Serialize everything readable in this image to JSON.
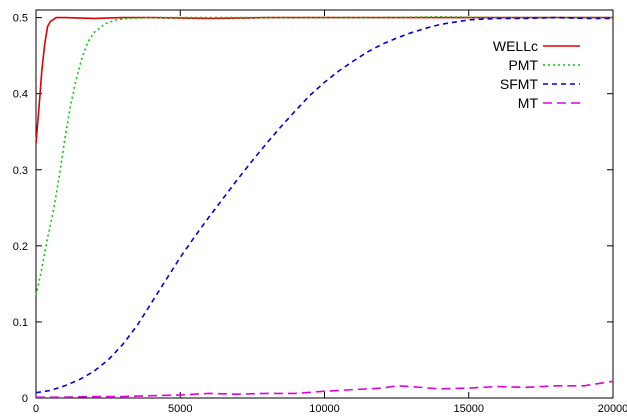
{
  "chart_data": {
    "type": "line",
    "xlim": [
      0,
      20000
    ],
    "ylim": [
      0,
      0.51
    ],
    "x_ticks": [
      0,
      5000,
      10000,
      15000,
      20000
    ],
    "x_tick_labels": [
      "0",
      "5000",
      "10000",
      "15000",
      "20000"
    ],
    "y_ticks": [
      0,
      0.1,
      0.2,
      0.3,
      0.4,
      0.5
    ],
    "y_tick_labels": [
      "0",
      "0.1",
      "0.2",
      "0.3",
      "0.4",
      "0.5"
    ],
    "grid": false,
    "legend_position": "top-right",
    "series": [
      {
        "name": "WELLc",
        "color": "#e00000",
        "dash": "solid",
        "points": [
          [
            0,
            0.335
          ],
          [
            100,
            0.38
          ],
          [
            200,
            0.43
          ],
          [
            300,
            0.465
          ],
          [
            400,
            0.488
          ],
          [
            500,
            0.495
          ],
          [
            700,
            0.5
          ],
          [
            1000,
            0.5
          ],
          [
            2000,
            0.499
          ],
          [
            3000,
            0.5
          ],
          [
            4000,
            0.5
          ],
          [
            6000,
            0.499
          ],
          [
            8000,
            0.5
          ],
          [
            10000,
            0.5
          ],
          [
            12000,
            0.5
          ],
          [
            14000,
            0.5
          ],
          [
            16000,
            0.5
          ],
          [
            18000,
            0.5
          ],
          [
            20000,
            0.5
          ]
        ]
      },
      {
        "name": "PMT",
        "color": "#00cc00",
        "dash": "dotted",
        "points": [
          [
            0,
            0.135
          ],
          [
            200,
            0.17
          ],
          [
            400,
            0.21
          ],
          [
            600,
            0.245
          ],
          [
            800,
            0.29
          ],
          [
            1000,
            0.34
          ],
          [
            1200,
            0.385
          ],
          [
            1400,
            0.42
          ],
          [
            1600,
            0.448
          ],
          [
            1800,
            0.468
          ],
          [
            2000,
            0.48
          ],
          [
            2400,
            0.492
          ],
          [
            2800,
            0.497
          ],
          [
            3200,
            0.499
          ],
          [
            4000,
            0.5
          ],
          [
            6000,
            0.5
          ],
          [
            8000,
            0.5
          ],
          [
            10000,
            0.5
          ],
          [
            12000,
            0.5
          ],
          [
            14000,
            0.501
          ],
          [
            16000,
            0.5
          ],
          [
            18000,
            0.5
          ],
          [
            20000,
            0.5
          ]
        ]
      },
      {
        "name": "SFMT",
        "color": "#0000dd",
        "dash": "dashed",
        "points": [
          [
            0,
            0.007
          ],
          [
            500,
            0.01
          ],
          [
            1000,
            0.016
          ],
          [
            1500,
            0.024
          ],
          [
            2000,
            0.035
          ],
          [
            2500,
            0.05
          ],
          [
            3000,
            0.07
          ],
          [
            3500,
            0.095
          ],
          [
            4000,
            0.125
          ],
          [
            4500,
            0.155
          ],
          [
            5000,
            0.185
          ],
          [
            5500,
            0.212
          ],
          [
            6000,
            0.238
          ],
          [
            6500,
            0.263
          ],
          [
            7000,
            0.288
          ],
          [
            7500,
            0.312
          ],
          [
            8000,
            0.335
          ],
          [
            8500,
            0.357
          ],
          [
            9000,
            0.378
          ],
          [
            9500,
            0.398
          ],
          [
            10000,
            0.415
          ],
          [
            10500,
            0.43
          ],
          [
            11000,
            0.443
          ],
          [
            11500,
            0.455
          ],
          [
            12000,
            0.465
          ],
          [
            12500,
            0.473
          ],
          [
            13000,
            0.48
          ],
          [
            13500,
            0.486
          ],
          [
            14000,
            0.491
          ],
          [
            14500,
            0.494
          ],
          [
            15000,
            0.497
          ],
          [
            16000,
            0.499
          ],
          [
            17000,
            0.499
          ],
          [
            18000,
            0.5
          ],
          [
            19000,
            0.499
          ],
          [
            20000,
            0.499
          ]
        ]
      },
      {
        "name": "MT",
        "color": "#e000e0",
        "dash": "longdash",
        "points": [
          [
            0,
            0.001
          ],
          [
            1000,
            0.001
          ],
          [
            2000,
            0.002
          ],
          [
            3000,
            0.002
          ],
          [
            4000,
            0.003
          ],
          [
            5000,
            0.004
          ],
          [
            6000,
            0.006
          ],
          [
            7000,
            0.005
          ],
          [
            8000,
            0.006
          ],
          [
            9000,
            0.006
          ],
          [
            10000,
            0.009
          ],
          [
            11000,
            0.011
          ],
          [
            12000,
            0.013
          ],
          [
            12500,
            0.016
          ],
          [
            13000,
            0.015
          ],
          [
            14000,
            0.012
          ],
          [
            15000,
            0.013
          ],
          [
            16000,
            0.015
          ],
          [
            17000,
            0.014
          ],
          [
            18000,
            0.016
          ],
          [
            19000,
            0.016
          ],
          [
            20000,
            0.022
          ]
        ]
      }
    ]
  }
}
